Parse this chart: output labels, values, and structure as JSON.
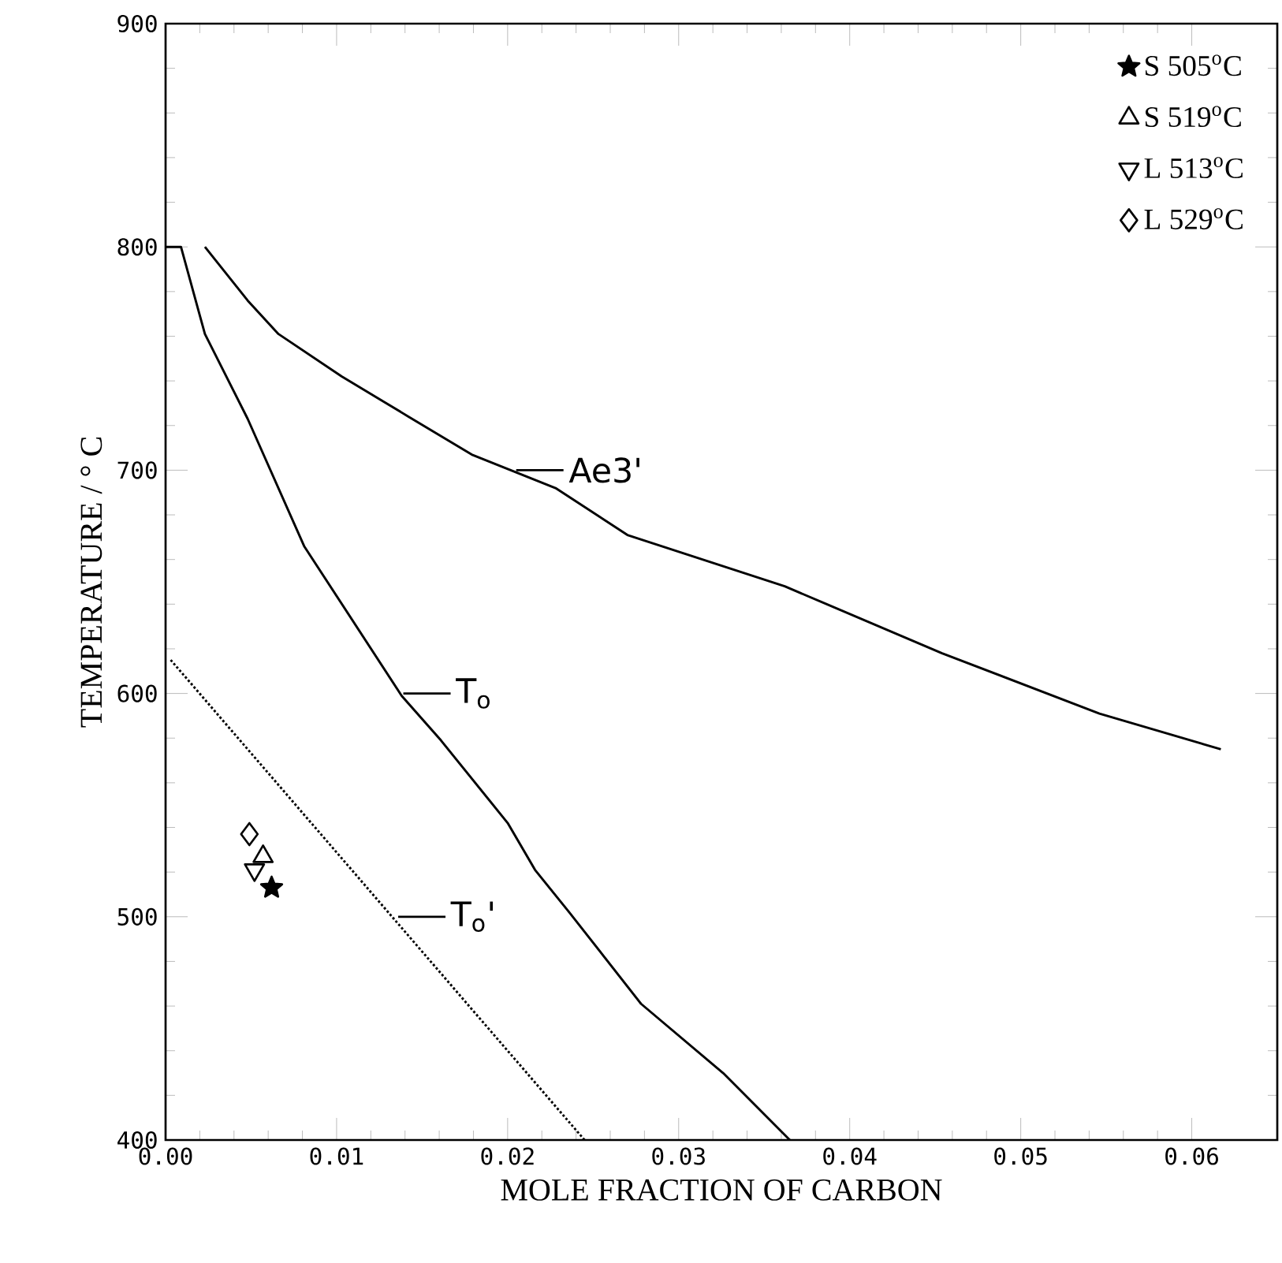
{
  "chart_data": {
    "type": "line",
    "xlabel": "MOLE FRACTION OF CARBON",
    "ylabel": "TEMPERATURE / ° C",
    "xlim": [
      0,
      0.065
    ],
    "ylim": [
      400,
      900
    ],
    "xticks": [
      {
        "value": 0,
        "label": "0.00"
      },
      {
        "value": 0.01,
        "label": "0.01"
      },
      {
        "value": 0.02,
        "label": "0.02"
      },
      {
        "value": 0.03,
        "label": "0.03"
      },
      {
        "value": 0.04,
        "label": "0.04"
      },
      {
        "value": 0.05,
        "label": "0.05"
      },
      {
        "value": 0.06,
        "label": "0.06"
      }
    ],
    "yticks": [
      400,
      500,
      600,
      700,
      800,
      900
    ],
    "legend": "top right",
    "grid": false,
    "series": [
      {
        "color": "#000000",
        "line_style": "solid",
        "x": [
          0.0023,
          0.0048,
          0.0066,
          0.0103,
          0.0142,
          0.0179,
          0.0228,
          0.027,
          0.0362,
          0.0454,
          0.0546,
          0.0617
        ],
        "values": [
          800,
          776,
          761,
          742,
          724,
          707,
          692,
          671,
          648,
          618,
          591,
          575
        ]
      },
      {
        "color": "#000000",
        "line_style": "solid",
        "x": [
          0,
          0.0009,
          0.0023,
          0.0048,
          0.0081,
          0.0138,
          0.0161,
          0.02,
          0.0216,
          0.0236,
          0.0278,
          0.0326,
          0.0365
        ],
        "values": [
          800,
          800,
          761,
          723,
          666,
          599,
          579,
          542,
          521,
          502,
          461,
          430,
          400
        ]
      },
      {
        "color": "#000000",
        "line_style": "dotted",
        "x": [
          0.0003,
          0.0245
        ],
        "values": [
          615,
          400
        ]
      },
      {
        "type": "scatter",
        "name": "S 505$^{o}$C",
        "color": "#000000",
        "marker": "star",
        "x": [
          0.0062
        ],
        "values": [
          513
        ]
      },
      {
        "type": "scatter",
        "name": "S 519$^{o}$C",
        "color": "#000000",
        "marker": "triangle",
        "x": [
          0.0057
        ],
        "values": [
          527
        ]
      },
      {
        "type": "scatter",
        "name": "L 513$^{o}$C",
        "color": "#000000",
        "marker": "triangle_down",
        "x": [
          0.0052
        ],
        "values": [
          521
        ]
      },
      {
        "type": "scatter",
        "name": "L 529$^{o}$C",
        "color": "#000000",
        "marker": "diamond",
        "x": [
          0.0049
        ],
        "values": [
          537
        ]
      }
    ],
    "annotations": [
      {
        "text": "Ae3'",
        "x": 0.0205,
        "y": 700
      },
      {
        "text": "T$_{o}$",
        "x": 0.0139,
        "y": 600
      },
      {
        "text": "T$_{o}$'",
        "x": 0.0136,
        "y": 500
      }
    ]
  }
}
